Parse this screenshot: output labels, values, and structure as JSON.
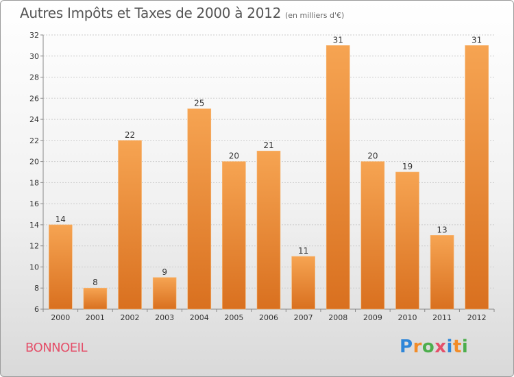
{
  "header": {
    "title": "Autres Impôts et Taxes de 2000 à 2012",
    "unit": "(en milliers d'€)"
  },
  "footer": {
    "commune": "BONNOEIL",
    "logo": [
      "P",
      "r",
      "o",
      "x",
      "i",
      "t",
      "i"
    ],
    "logo_colors": [
      "#2e86d8",
      "#f28c28",
      "#4cae4c",
      "#e4506a",
      "#2e86d8",
      "#f28c28",
      "#4cae4c"
    ]
  },
  "colors": {
    "bar_top": "#f6a452",
    "bar_bottom": "#d9701f",
    "grid": "#cccccc",
    "axis": "#888888"
  },
  "chart_data": {
    "type": "bar",
    "title": "Autres Impôts et Taxes de 2000 à 2012",
    "ylabel": "",
    "xlabel": "",
    "categories": [
      "2000",
      "2001",
      "2002",
      "2003",
      "2004",
      "2005",
      "2006",
      "2007",
      "2008",
      "2009",
      "2010",
      "2011",
      "2012"
    ],
    "values": [
      14,
      8,
      22,
      9,
      25,
      20,
      21,
      11,
      31,
      20,
      19,
      13,
      31
    ],
    "ylim": [
      6,
      32
    ],
    "yticks": [
      6,
      8,
      10,
      12,
      14,
      16,
      18,
      20,
      22,
      24,
      26,
      28,
      30,
      32
    ],
    "grid": true,
    "legend": "none"
  }
}
